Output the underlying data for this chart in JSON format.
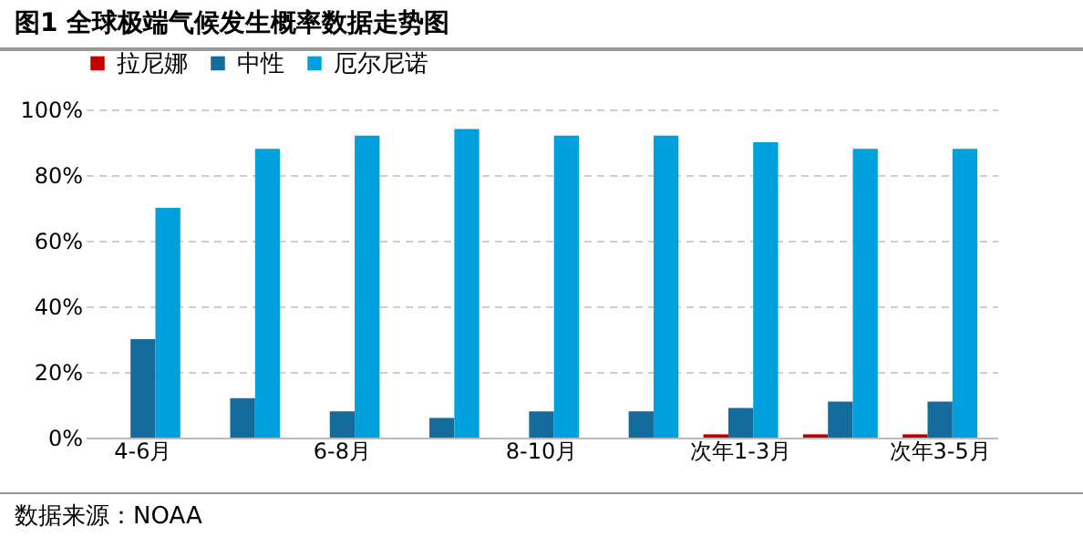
{
  "chart_data": {
    "type": "bar",
    "title": "图1 全球极端气候发生概率数据走势图",
    "categories": [
      "4-6月",
      null,
      "6-8月",
      null,
      "8-10月",
      null,
      "次年1-3月",
      null,
      "次年3-5月"
    ],
    "series": [
      {
        "name": "拉尼娜",
        "color": "#c00000",
        "values": [
          0,
          0,
          0,
          0,
          0,
          0,
          1,
          1,
          1
        ]
      },
      {
        "name": "中性",
        "color": "#156b9c",
        "values": [
          30,
          12,
          8,
          6,
          8,
          8,
          9,
          11,
          11
        ]
      },
      {
        "name": "厄尔尼诺",
        "color": "#00a0dc",
        "values": [
          70,
          88,
          92,
          94,
          92,
          92,
          90,
          88,
          88
        ]
      }
    ],
    "ylim": [
      0,
      100
    ],
    "yticks": [
      {
        "value": 0,
        "label": "0%"
      },
      {
        "value": 20,
        "label": "20%"
      },
      {
        "value": 40,
        "label": "40%"
      },
      {
        "value": 60,
        "label": "60%"
      },
      {
        "value": 80,
        "label": "80%"
      },
      {
        "value": 100,
        "label": "100%"
      }
    ],
    "grid": "y",
    "legend": "top",
    "annotations": [
      "数据来源：NOAA"
    ]
  }
}
